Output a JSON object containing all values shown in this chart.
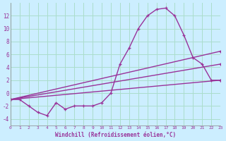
{
  "xlabel": "Windchill (Refroidissement éolien,°C)",
  "bg_color": "#cceeff",
  "grid_color": "#aaddcc",
  "line_color": "#993399",
  "xlim": [
    0,
    23
  ],
  "ylim": [
    -5,
    14
  ],
  "xticks": [
    0,
    1,
    2,
    3,
    4,
    5,
    6,
    7,
    8,
    9,
    10,
    11,
    12,
    13,
    14,
    15,
    16,
    17,
    18,
    19,
    20,
    21,
    22,
    23
  ],
  "yticks": [
    -4,
    -2,
    0,
    2,
    4,
    6,
    8,
    10,
    12
  ],
  "line1_x": [
    0,
    1,
    2,
    3,
    4,
    5,
    6,
    7,
    8,
    9,
    10,
    11,
    12,
    13,
    14,
    15,
    16,
    17,
    18,
    19,
    20,
    21,
    22,
    23
  ],
  "line1_y": [
    -1,
    -1,
    -2,
    -3,
    -3.5,
    -1.5,
    -2.5,
    -2,
    -2,
    -2,
    -1.5,
    0,
    4.5,
    7,
    10,
    12,
    13,
    13.2,
    12,
    9,
    5.5,
    4.5,
    2,
    2
  ],
  "line2_x": [
    0,
    23
  ],
  "line2_y": [
    -1,
    2
  ],
  "line3_x": [
    0,
    23
  ],
  "line3_y": [
    -1,
    4.5
  ],
  "line4_x": [
    0,
    23
  ],
  "line4_y": [
    -1,
    6.5
  ]
}
